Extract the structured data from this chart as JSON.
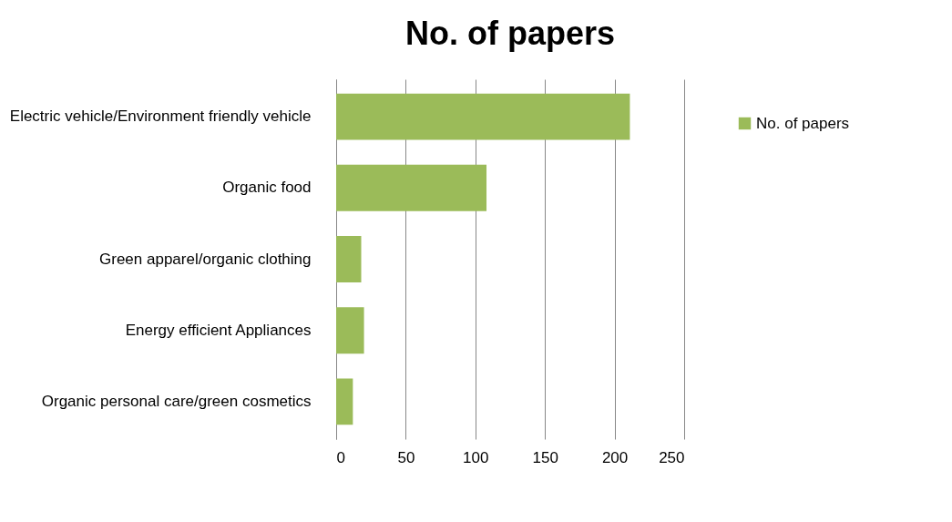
{
  "chart_data": {
    "type": "bar",
    "orientation": "horizontal",
    "title": "No. of papers",
    "categories": [
      "Electric vehicle/Environment friendly vehicle",
      "Organic food",
      "Green apparel/organic clothing",
      "Energy efficient Appliances",
      "Organic personal care/green cosmetics"
    ],
    "series": [
      {
        "name": "No. of papers",
        "color": "#9bbb59",
        "values": [
          211,
          108,
          18,
          20,
          12
        ]
      }
    ],
    "xlim": [
      0,
      250
    ],
    "xticks": [
      0,
      50,
      100,
      150,
      200,
      250
    ],
    "grid": "x",
    "legend": "right"
  }
}
